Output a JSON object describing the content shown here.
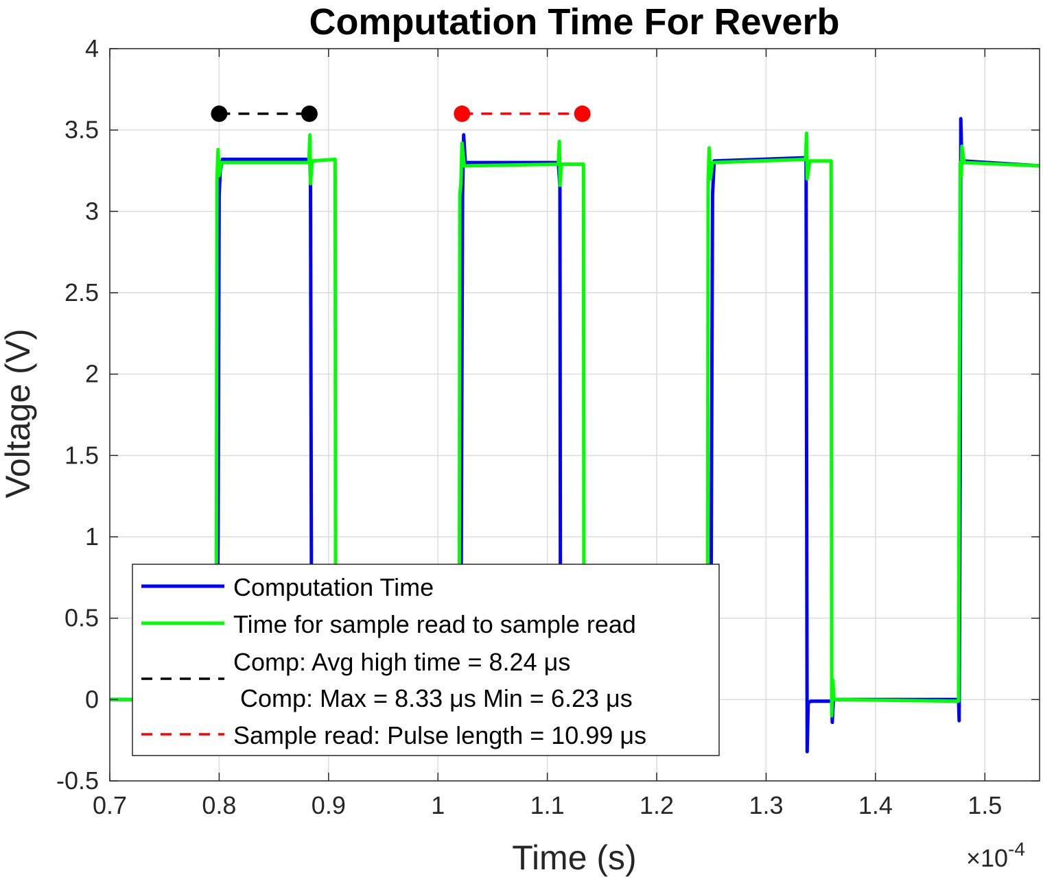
{
  "chart_data": {
    "type": "line",
    "title": "Computation Time For Reverb",
    "xlabel": "Time (s)",
    "ylabel": "Voltage (V)",
    "x_multiplier": "×10",
    "x_multiplier_exp": "-4",
    "xlim": [
      0.7,
      1.55
    ],
    "ylim": [
      -0.5,
      4
    ],
    "x_ticks": [
      0.7,
      0.8,
      0.9,
      1.0,
      1.1,
      1.2,
      1.3,
      1.4,
      1.5
    ],
    "x_tick_labels": [
      "0.7",
      "0.8",
      "0.9",
      "1",
      "1.1",
      "1.2",
      "1.3",
      "1.4",
      "1.5"
    ],
    "y_ticks": [
      -0.5,
      0,
      0.5,
      1,
      1.5,
      2,
      2.5,
      3,
      3.5,
      4
    ],
    "y_tick_labels": [
      "-0.5",
      "0",
      "0.5",
      "1",
      "1.5",
      "2",
      "2.5",
      "3",
      "3.5",
      "4"
    ],
    "grid": true,
    "legend_position": "bottom-left",
    "series": [
      {
        "name": "Computation Time",
        "color": "#0000ff",
        "style": "solid",
        "points": [
          [
            0.7,
            0.0
          ],
          [
            0.798,
            0.0
          ],
          [
            0.799,
            1.0
          ],
          [
            0.8,
            3.1
          ],
          [
            0.801,
            3.25
          ],
          [
            0.803,
            3.32
          ],
          [
            0.883,
            3.32
          ],
          [
            0.8835,
            3.18
          ],
          [
            0.8845,
            0.3
          ],
          [
            1.021,
            0.3
          ],
          [
            1.0225,
            3.1
          ],
          [
            1.0235,
            3.47
          ],
          [
            1.025,
            3.3
          ],
          [
            1.11,
            3.3
          ],
          [
            1.1115,
            3.15
          ],
          [
            1.112,
            0.3
          ],
          [
            1.2495,
            0.3
          ],
          [
            1.251,
            3.1
          ],
          [
            1.2525,
            3.31
          ],
          [
            1.3365,
            3.33
          ],
          [
            1.3375,
            -0.32
          ],
          [
            1.3385,
            -0.02
          ],
          [
            1.341,
            -0.01
          ],
          [
            1.36,
            -0.01
          ],
          [
            1.3605,
            -0.14
          ],
          [
            1.3615,
            0.0
          ],
          [
            1.476,
            0.0
          ],
          [
            1.4765,
            -0.13
          ],
          [
            1.4775,
            1.5
          ],
          [
            1.478,
            3.57
          ],
          [
            1.479,
            3.29
          ],
          [
            1.48,
            3.31
          ],
          [
            1.55,
            3.28
          ]
        ]
      },
      {
        "name": "Time for sample read to sample read",
        "color": "#00ff00",
        "style": "solid",
        "points": [
          [
            0.7,
            0.0
          ],
          [
            0.797,
            0.0
          ],
          [
            0.7975,
            1.0
          ],
          [
            0.798,
            3.2
          ],
          [
            0.799,
            3.38
          ],
          [
            0.8,
            3.22
          ],
          [
            0.802,
            3.3
          ],
          [
            0.882,
            3.3
          ],
          [
            0.883,
            3.47
          ],
          [
            0.8835,
            3.17
          ],
          [
            0.885,
            3.31
          ],
          [
            0.906,
            3.32
          ],
          [
            0.9065,
            0.3
          ],
          [
            1.0195,
            0.3
          ],
          [
            1.02,
            3.1
          ],
          [
            1.021,
            3.17
          ],
          [
            1.022,
            3.42
          ],
          [
            1.024,
            3.28
          ],
          [
            1.11,
            3.29
          ],
          [
            1.111,
            3.43
          ],
          [
            1.1115,
            3.16
          ],
          [
            1.113,
            3.29
          ],
          [
            1.133,
            3.29
          ],
          [
            1.1335,
            0.3
          ],
          [
            1.2465,
            0.3
          ],
          [
            1.247,
            3.2
          ],
          [
            1.248,
            3.39
          ],
          [
            1.249,
            3.2
          ],
          [
            1.251,
            3.3
          ],
          [
            1.336,
            3.32
          ],
          [
            1.337,
            3.48
          ],
          [
            1.3375,
            3.2
          ],
          [
            1.34,
            3.31
          ],
          [
            1.3595,
            3.31
          ],
          [
            1.36,
            -0.1
          ],
          [
            1.361,
            0.12
          ],
          [
            1.362,
            0.0
          ],
          [
            1.365,
            0.0
          ],
          [
            1.476,
            -0.01
          ],
          [
            1.4765,
            1.5
          ],
          [
            1.4775,
            3.3
          ],
          [
            1.4785,
            3.22
          ],
          [
            1.479,
            3.4
          ],
          [
            1.481,
            3.3
          ],
          [
            1.55,
            3.28
          ]
        ]
      }
    ],
    "markers": [
      {
        "name": "Comp: Avg high time = 8.24 μs",
        "name_line2": " Comp: Max = 8.33 μs Min = 6.23 μs",
        "color": "#000000",
        "style": "dashed",
        "x": [
          0.8,
          0.8825
        ],
        "y": 3.6
      },
      {
        "name": "Sample read: Pulse length = 10.99 μs",
        "color": "#ff0000",
        "style": "dashed",
        "x": [
          1.022,
          1.132
        ],
        "y": 3.6
      }
    ]
  }
}
